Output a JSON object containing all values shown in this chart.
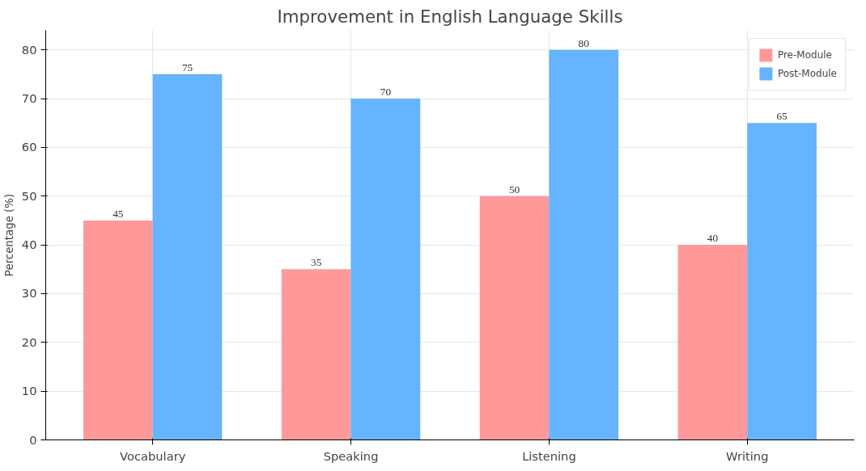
{
  "chart_data": {
    "type": "bar",
    "title": "Improvement in English Language Skills",
    "ylabel": "Percentage (%)",
    "categories": [
      "Vocabulary",
      "Speaking",
      "Listening",
      "Writing"
    ],
    "series": [
      {
        "name": "Pre-Module",
        "color": "#ff9999",
        "values": [
          45,
          35,
          50,
          40
        ]
      },
      {
        "name": "Post-Module",
        "color": "#66b3ff",
        "values": [
          75,
          70,
          80,
          65
        ]
      }
    ],
    "ylim": [
      0,
      84
    ],
    "yticks": [
      0,
      10,
      20,
      30,
      40,
      50,
      60,
      70,
      80
    ],
    "grid": true,
    "legend": "top right",
    "data_labels": true
  }
}
